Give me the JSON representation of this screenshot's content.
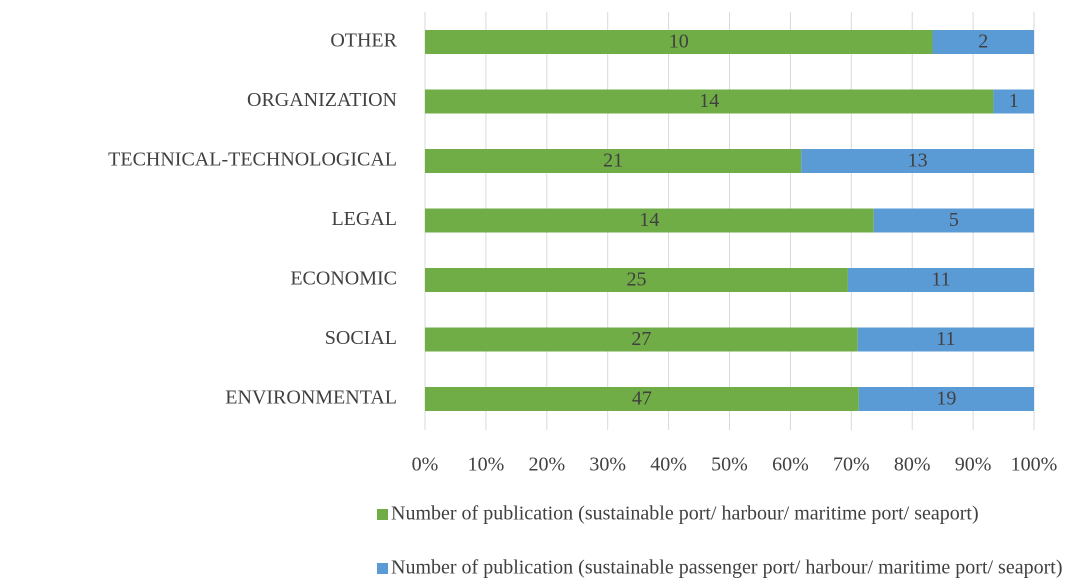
{
  "chart_data": {
    "type": "bar",
    "orientation": "horizontal",
    "stacking": "percent",
    "categories": [
      "OTHER",
      "ORGANIZATION",
      "TECHNICAL-TECHNOLOGICAL",
      "LEGAL",
      "ECONOMIC",
      "SOCIAL",
      "ENVIRONMENTAL"
    ],
    "series": [
      {
        "name": "Number of publication (sustainable port/ harbour/ maritime port/ seaport)",
        "color": "#70ad47",
        "values": [
          10,
          14,
          21,
          14,
          25,
          27,
          47
        ]
      },
      {
        "name": "Number of publication (sustainable passenger port/ harbour/ maritime port/ seaport)",
        "color": "#5b9bd5",
        "values": [
          2,
          1,
          13,
          5,
          11,
          11,
          19
        ]
      }
    ],
    "xlim": [
      0,
      100
    ],
    "xticks": [
      {
        "value": 0,
        "label": "0%"
      },
      {
        "value": 10,
        "label": "10%"
      },
      {
        "value": 20,
        "label": "20%"
      },
      {
        "value": 30,
        "label": "30%"
      },
      {
        "value": 40,
        "label": "40%"
      },
      {
        "value": 50,
        "label": "50%"
      },
      {
        "value": 60,
        "label": "60%"
      },
      {
        "value": 70,
        "label": "70%"
      },
      {
        "value": 80,
        "label": "80%"
      },
      {
        "value": 90,
        "label": "90%"
      },
      {
        "value": 100,
        "label": "100%"
      }
    ],
    "grid": true,
    "legend": "bottom"
  }
}
